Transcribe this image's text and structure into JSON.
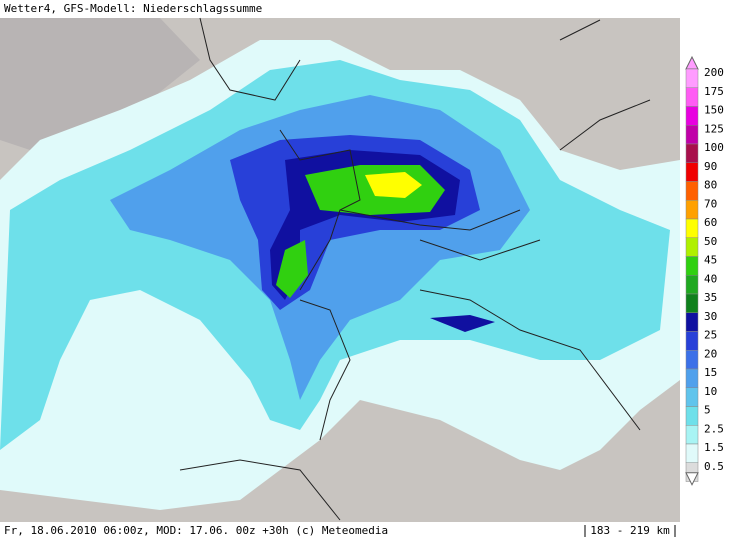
{
  "header": {
    "title": "Wetter4, GFS-Modell: Niederschlagssumme"
  },
  "footer": {
    "info": "Fr, 18.06.2010 06:00z, MOD: 17.06. 00z +30h (c) Meteomedia",
    "scale": "183 - 219 km"
  },
  "legend": {
    "items": [
      {
        "label": "200",
        "color": "#ff9cff"
      },
      {
        "label": "175",
        "color": "#ff5cf4"
      },
      {
        "label": "150",
        "color": "#e800e0"
      },
      {
        "label": "125",
        "color": "#c000a8"
      },
      {
        "label": "100",
        "color": "#a8104c"
      },
      {
        "label": "90",
        "color": "#f00000"
      },
      {
        "label": "80",
        "color": "#ff6000"
      },
      {
        "label": "70",
        "color": "#ffa000"
      },
      {
        "label": "60",
        "color": "#ffff00"
      },
      {
        "label": "50",
        "color": "#b0f000"
      },
      {
        "label": "45",
        "color": "#30d010"
      },
      {
        "label": "40",
        "color": "#20a820"
      },
      {
        "label": "35",
        "color": "#10801c"
      },
      {
        "label": "30",
        "color": "#1010a0"
      },
      {
        "label": "25",
        "color": "#2840d8"
      },
      {
        "label": "20",
        "color": "#3c70e8"
      },
      {
        "label": "15",
        "color": "#50a0ec"
      },
      {
        "label": "10",
        "color": "#60c4ec"
      },
      {
        "label": "5",
        "color": "#6ee0ea"
      },
      {
        "label": "2.5",
        "color": "#a8f4f4"
      },
      {
        "label": "1.5",
        "color": "#e0fafa"
      },
      {
        "label": "0.5",
        "color": "#dcdcdc"
      }
    ]
  }
}
